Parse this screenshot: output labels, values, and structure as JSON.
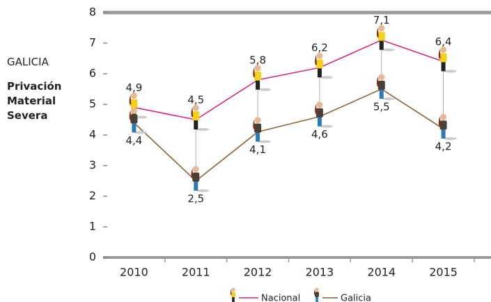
{
  "chart_data": {
    "type": "line",
    "region": "GALICIA",
    "title": "Privación Material Severa",
    "categories": [
      "2010",
      "2011",
      "2012",
      "2013",
      "2014",
      "2015"
    ],
    "series": [
      {
        "name": "Nacional",
        "color": "#d81b7a",
        "values": [
          4.9,
          4.5,
          5.8,
          6.2,
          7.1,
          6.4
        ],
        "value_labels": [
          "4,9",
          "4,5",
          "5,8",
          "6,2",
          "7,1",
          "6,4"
        ]
      },
      {
        "name": "Galicia",
        "color": "#8b5a2b",
        "values": [
          4.4,
          2.5,
          4.1,
          4.6,
          5.5,
          4.2
        ],
        "value_labels": [
          "4,4",
          "2,5",
          "4,1",
          "4,6",
          "5,5",
          "4,2"
        ]
      }
    ],
    "ylim": [
      0,
      8
    ],
    "yticks": [
      0,
      1,
      2,
      3,
      4,
      5,
      6,
      7,
      8
    ],
    "grid": false
  }
}
